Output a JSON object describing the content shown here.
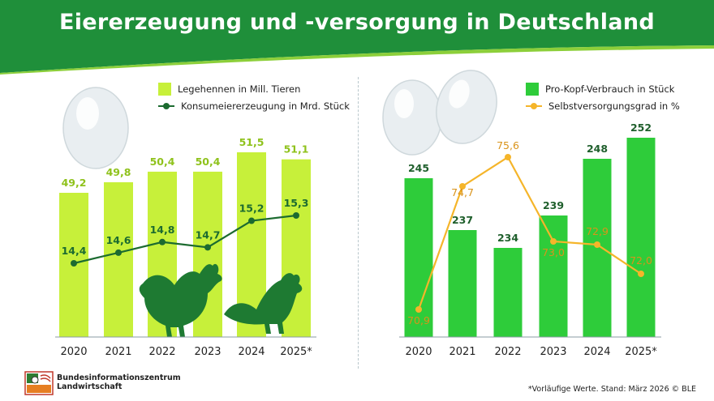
{
  "title": "Eiererzeugung und -versorgung in Deutschland",
  "colors": {
    "header_green": "#1f8f3a",
    "lime_bar": "#c7f03a",
    "lime_label": "#8fc21c",
    "dark_line": "#1c6b30",
    "green_bar": "#2ecc3a",
    "orange_line": "#f5b52a",
    "hen": "#1e7a32"
  },
  "chart_data": [
    {
      "type": "bar",
      "categories": [
        "2020",
        "2021",
        "2022",
        "2023",
        "2024",
        "2025*"
      ],
      "series": [
        {
          "name": "Legehennen in Mill. Tieren",
          "type": "bar",
          "values": [
            49.2,
            49.8,
            50.4,
            50.4,
            51.5,
            51.1
          ],
          "labels": [
            "49,2",
            "49,8",
            "50,4",
            "50,4",
            "51,5",
            "51,1"
          ]
        },
        {
          "name": "Konsumeiererzeugung in Mrd. Stück",
          "type": "line",
          "values": [
            14.4,
            14.6,
            14.8,
            14.7,
            15.2,
            15.3
          ],
          "labels": [
            "14,4",
            "14,6",
            "14,8",
            "14,7",
            "15,2",
            "15,3"
          ]
        }
      ],
      "legend_position": "top-right"
    },
    {
      "type": "bar",
      "categories": [
        "2020",
        "2021",
        "2022",
        "2023",
        "2024",
        "2025*"
      ],
      "series": [
        {
          "name": "Pro-Kopf-Verbrauch in Stück",
          "type": "bar",
          "values": [
            245,
            237,
            234,
            239,
            248,
            252
          ],
          "labels": [
            "245",
            "237",
            "234",
            "239",
            "248",
            "252"
          ]
        },
        {
          "name": "Selbstversorgungsgrad in %",
          "type": "line",
          "values": [
            70.9,
            74.7,
            75.6,
            73.0,
            72.9,
            72.0
          ],
          "labels": [
            "70,9",
            "74,7",
            "75,6",
            "73,0",
            "72,9",
            "72,0"
          ]
        }
      ],
      "legend_position": "top-right"
    }
  ],
  "logo": {
    "line1": "Bundesinformationszentrum",
    "line2": "Landwirtschaft"
  },
  "footnote": "*Vorläufige Werte. Stand: März 2026 © BLE"
}
